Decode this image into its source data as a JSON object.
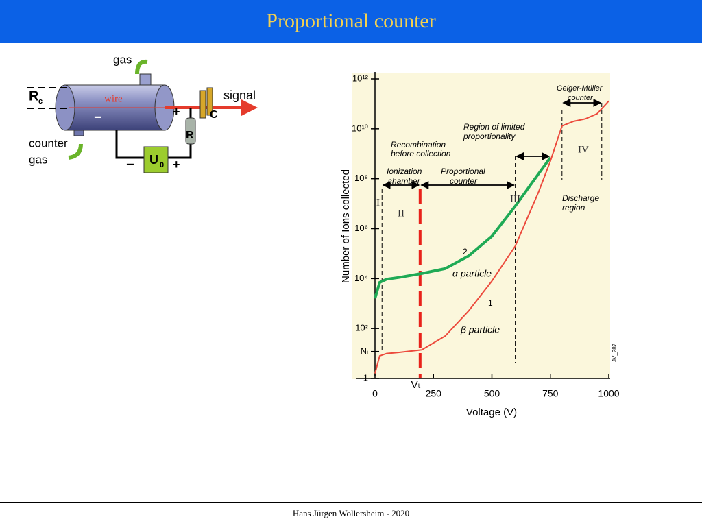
{
  "header": {
    "title": "Proportional counter"
  },
  "diagram": {
    "gas_out": "gas",
    "r": "R",
    "r_sub": "c",
    "wire": "wire",
    "signal": "signal",
    "plus_top": "+",
    "minus_wire": "−",
    "capacitor": "C",
    "resistor": "R",
    "voltage": "U",
    "voltage_sub": "0",
    "minus": "−",
    "plus": "+",
    "counter_gas": [
      "counter",
      "gas"
    ]
  },
  "chart_data": {
    "type": "line",
    "ylabel": "Number of Ions collected",
    "xlabel": "Voltage (V)",
    "xlim": [
      0,
      1000
    ],
    "xticks": [
      0,
      250,
      500,
      750,
      1000
    ],
    "ylim": [
      1,
      1000000000000
    ],
    "yscale": "log",
    "yticks": [
      1,
      {
        "value": 100,
        "label": "10²"
      },
      {
        "value": 10000,
        "label": "10⁴"
      },
      {
        "value": 1000000,
        "label": "10⁶"
      },
      {
        "value": 100000000,
        "label": "10⁸"
      },
      {
        "value": 10000000000,
        "label": "10¹⁰"
      },
      {
        "value": 1000000000000,
        "label": "10¹²"
      },
      {
        "value": 12,
        "label": "Nᵢ"
      }
    ],
    "x": [
      0,
      20,
      50,
      100,
      200,
      300,
      400,
      500,
      600,
      700,
      750,
      800,
      850,
      900,
      950,
      1000
    ],
    "series": [
      {
        "name": "α particle",
        "label": "2",
        "color": "#1faa55",
        "values": [
          1600,
          7000,
          9500,
          11000,
          16000,
          25000,
          80000,
          500000,
          8000000,
          160000000,
          700000000,
          null,
          null,
          null,
          null,
          null
        ]
      },
      {
        "name": "β particle",
        "label": "1",
        "color": "#ec4a3c",
        "values": [
          1.6,
          8,
          10,
          11,
          14,
          50,
          500,
          8000,
          200000,
          30000000,
          500000000,
          13000000000,
          20000000000,
          25000000000,
          40000000000,
          130000000000
        ]
      }
    ],
    "threshold": {
      "label": "Vₜ",
      "value": 193
    },
    "annotations": [
      "Recombination",
      "before collection",
      "Ionization",
      "chamber",
      "Proportional",
      "counter",
      "Region of limited",
      "proportionality",
      "Geiger-Müller",
      "counter",
      "Discharge",
      "region",
      "I",
      "II",
      "III",
      "IV",
      "JV_287"
    ]
  },
  "footer": {
    "text": "Hans Jürgen Wollersheim - 2020"
  }
}
